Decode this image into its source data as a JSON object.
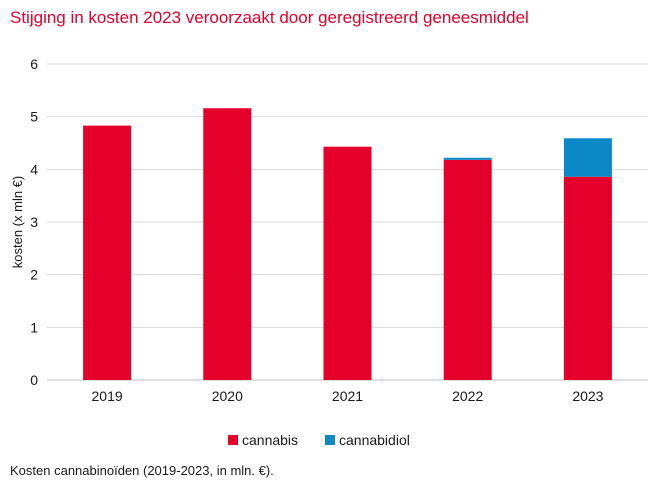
{
  "title": "Stijging in kosten 2023 veroorzaakt door geregistreerd geneesmiddel",
  "caption": "Kosten cannabinoïden (2019-2023, in mln. €).",
  "colors": {
    "title": "#e4002b",
    "cannabis": "#e4002b",
    "cannabidiol": "#0a89c6",
    "grid": "#d9d9d9"
  },
  "chart_data": {
    "type": "bar",
    "stacked": true,
    "categories": [
      "2019",
      "2020",
      "2021",
      "2022",
      "2023"
    ],
    "series": [
      {
        "name": "cannabis",
        "color": "#e4002b",
        "values": [
          4.83,
          5.16,
          4.43,
          4.18,
          3.86
        ]
      },
      {
        "name": "cannabidiol",
        "color": "#0a89c6",
        "values": [
          0,
          0,
          0,
          0.04,
          0.73
        ]
      }
    ],
    "ylabel": "kosten (x mln €)",
    "xlabel": "",
    "ylim": [
      0,
      6
    ],
    "yticks": [
      "0",
      "1",
      "2",
      "3",
      "4",
      "5",
      "6"
    ],
    "grid": true,
    "legend": "bottom"
  }
}
